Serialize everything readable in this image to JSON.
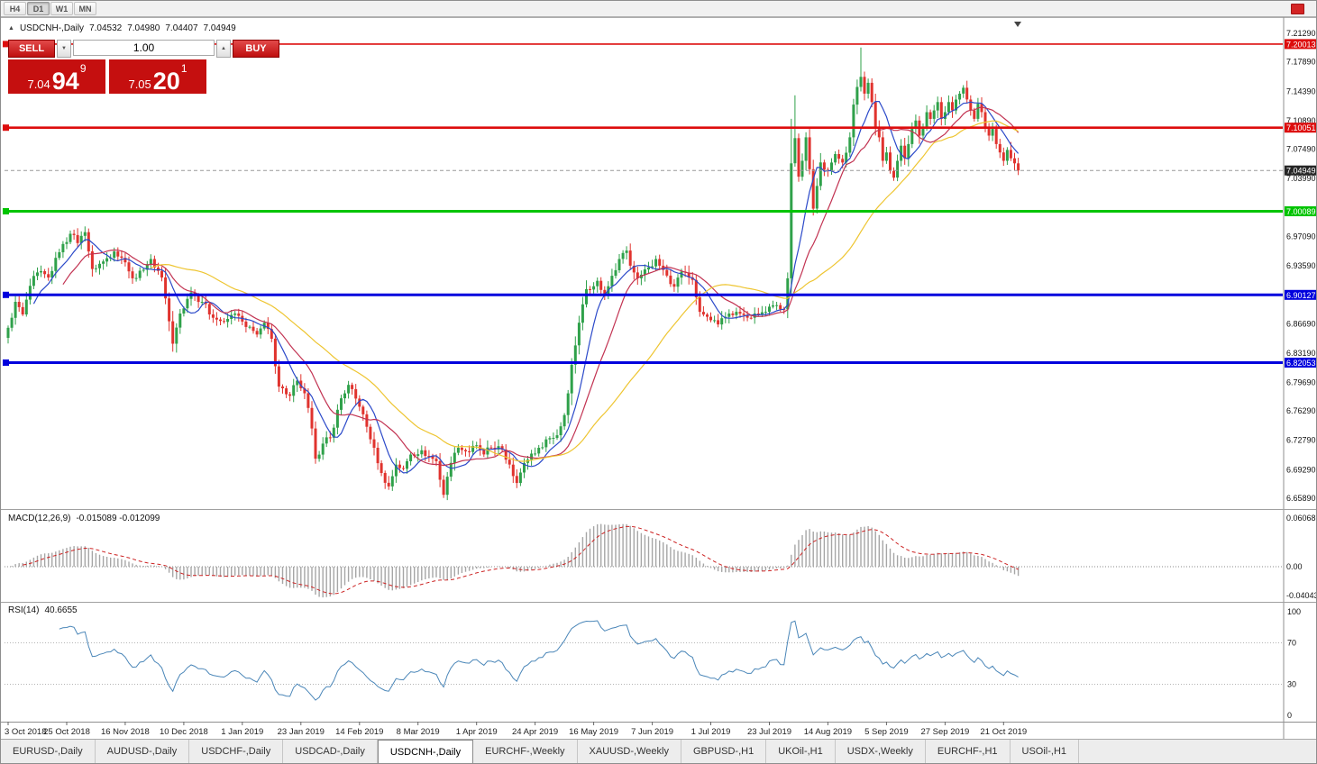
{
  "toolbar": {
    "timeframes": [
      {
        "label": "H4",
        "active": false
      },
      {
        "label": "D1",
        "active": true
      },
      {
        "label": "W1",
        "active": false
      },
      {
        "label": "MN",
        "active": false
      }
    ]
  },
  "icons": {
    "spinner_down": "▼",
    "spinner_up": "▲",
    "info_marker": "▲"
  },
  "chart_header": {
    "symbol": "USDCNH-,Daily",
    "open": "7.04532",
    "high": "7.04980",
    "low": "7.04407",
    "close": "7.04949"
  },
  "trade_panel": {
    "sell_label": "SELL",
    "buy_label": "BUY",
    "volume": "1.00",
    "sell_price_whole": "7.04",
    "sell_price_big": "94",
    "sell_price_sup": "9",
    "buy_price_whole": "7.05",
    "buy_price_big": "20",
    "buy_price_sup": "1"
  },
  "chart_data": {
    "type": "candlestick",
    "title": "USDCNH Daily with MACD and RSI",
    "symbol": "USDCNH",
    "timeframe": "Daily",
    "price_min": 6.6589,
    "price_max": 7.2129,
    "bars_total": 277,
    "current_price": 7.04949,
    "current_price_label": "7.04949",
    "current_price_tag_color": "#262626",
    "candle_up_color": "#2fa14a",
    "candle_down_color": "#e0332e",
    "x_labels": [
      "3 Oct 2018",
      "25 Oct 2018",
      "16 Nov 2018",
      "10 Dec 2018",
      "1 Jan 2019",
      "23 Jan 2019",
      "14 Feb 2019",
      "8 Mar 2019",
      "1 Apr 2019",
      "24 Apr 2019",
      "16 May 2019",
      "7 Jun 2019",
      "1 Jul 2019",
      "23 Jul 2019",
      "14 Aug 2019",
      "5 Sep 2019",
      "27 Sep 2019",
      "21 Oct 2019"
    ],
    "y_axis_labels": [
      "7.21290",
      "7.17890",
      "7.14390",
      "7.10890",
      "7.07490",
      "7.03990",
      "6.97090",
      "6.93590",
      "6.86690",
      "6.83190",
      "6.79690",
      "6.76290",
      "6.72790",
      "6.69290",
      "6.65890"
    ],
    "horizontal_lines": [
      {
        "price": 7.20013,
        "label": "7.20013",
        "color": "#dd0d0d",
        "width": 1.6
      },
      {
        "price": 7.10051,
        "label": "7.10051",
        "color": "#dd0d0d",
        "width": 2.6
      },
      {
        "price": 7.00089,
        "label": "7.00089",
        "color": "#00c400",
        "width": 3
      },
      {
        "price": 6.90127,
        "label": "6.90127",
        "color": "#0000dd",
        "width": 3
      },
      {
        "price": 6.82053,
        "label": "6.82053",
        "color": "#0000dd",
        "width": 3
      }
    ],
    "moving_averages": [
      {
        "name": "fast",
        "period": 8,
        "color": "#2b49c9"
      },
      {
        "name": "mid",
        "period": 16,
        "color": "#c23352"
      },
      {
        "name": "slow",
        "period": 40,
        "color": "#eec531"
      }
    ],
    "close_anchors": [
      [
        0,
        6.862
      ],
      [
        2,
        6.893
      ],
      [
        4,
        6.878
      ],
      [
        6,
        6.912
      ],
      [
        8,
        6.928
      ],
      [
        11,
        6.922
      ],
      [
        14,
        6.952
      ],
      [
        17,
        6.974
      ],
      [
        19,
        6.963
      ],
      [
        21,
        6.976
      ],
      [
        23,
        6.932
      ],
      [
        26,
        6.941
      ],
      [
        29,
        6.953
      ],
      [
        32,
        6.94
      ],
      [
        34,
        6.921
      ],
      [
        36,
        6.93
      ],
      [
        39,
        6.944
      ],
      [
        42,
        6.922
      ],
      [
        43,
        6.897
      ],
      [
        45,
        6.843
      ],
      [
        47,
        6.879
      ],
      [
        50,
        6.904
      ],
      [
        53,
        6.893
      ],
      [
        56,
        6.874
      ],
      [
        59,
        6.869
      ],
      [
        62,
        6.879
      ],
      [
        65,
        6.863
      ],
      [
        68,
        6.854
      ],
      [
        70,
        6.868
      ],
      [
        72,
        6.849
      ],
      [
        74,
        6.792
      ],
      [
        77,
        6.781
      ],
      [
        79,
        6.799
      ],
      [
        81,
        6.784
      ],
      [
        83,
        6.742
      ],
      [
        84,
        6.706
      ],
      [
        86,
        6.724
      ],
      [
        88,
        6.731
      ],
      [
        91,
        6.778
      ],
      [
        93,
        6.794
      ],
      [
        96,
        6.768
      ],
      [
        98,
        6.744
      ],
      [
        100,
        6.719
      ],
      [
        102,
        6.689
      ],
      [
        104,
        6.673
      ],
      [
        106,
        6.699
      ],
      [
        108,
        6.694
      ],
      [
        110,
        6.711
      ],
      [
        113,
        6.716
      ],
      [
        115,
        6.709
      ],
      [
        117,
        6.703
      ],
      [
        119,
        6.663
      ],
      [
        121,
        6.701
      ],
      [
        123,
        6.719
      ],
      [
        126,
        6.714
      ],
      [
        128,
        6.722
      ],
      [
        130,
        6.711
      ],
      [
        132,
        6.719
      ],
      [
        134,
        6.721
      ],
      [
        137,
        6.699
      ],
      [
        139,
        6.677
      ],
      [
        141,
        6.701
      ],
      [
        143,
        6.712
      ],
      [
        145,
        6.719
      ],
      [
        147,
        6.729
      ],
      [
        150,
        6.734
      ],
      [
        152,
        6.758
      ],
      [
        154,
        6.818
      ],
      [
        156,
        6.868
      ],
      [
        158,
        6.908
      ],
      [
        161,
        6.918
      ],
      [
        163,
        6.901
      ],
      [
        165,
        6.924
      ],
      [
        167,
        6.944
      ],
      [
        169,
        6.954
      ],
      [
        170,
        6.936
      ],
      [
        172,
        6.921
      ],
      [
        175,
        6.934
      ],
      [
        177,
        6.944
      ],
      [
        179,
        6.931
      ],
      [
        182,
        6.911
      ],
      [
        184,
        6.929
      ],
      [
        187,
        6.919
      ],
      [
        189,
        6.881
      ],
      [
        192,
        6.871
      ],
      [
        194,
        6.866
      ],
      [
        197,
        6.879
      ],
      [
        199,
        6.881
      ],
      [
        202,
        6.874
      ],
      [
        204,
        6.879
      ],
      [
        207,
        6.881
      ],
      [
        210,
        6.889
      ],
      [
        212,
        6.884
      ],
      [
        213,
        6.921
      ],
      [
        214,
        7.058
      ],
      [
        215,
        7.088
      ],
      [
        216,
        7.042
      ],
      [
        217,
        7.061
      ],
      [
        218,
        7.089
      ],
      [
        219,
        7.051
      ],
      [
        220,
        7.004
      ],
      [
        221,
        7.031
      ],
      [
        222,
        7.059
      ],
      [
        224,
        7.049
      ],
      [
        226,
        7.069
      ],
      [
        228,
        7.059
      ],
      [
        230,
        7.089
      ],
      [
        231,
        7.128
      ],
      [
        232,
        7.149
      ],
      [
        233,
        7.161
      ],
      [
        234,
        7.141
      ],
      [
        235,
        7.154
      ],
      [
        236,
        7.131
      ],
      [
        237,
        7.101
      ],
      [
        238,
        7.089
      ],
      [
        239,
        7.061
      ],
      [
        240,
        7.071
      ],
      [
        241,
        7.049
      ],
      [
        242,
        7.041
      ],
      [
        243,
        7.061
      ],
      [
        244,
        7.079
      ],
      [
        245,
        7.064
      ],
      [
        246,
        7.081
      ],
      [
        247,
        7.099
      ],
      [
        248,
        7.109
      ],
      [
        249,
        7.091
      ],
      [
        250,
        7.101
      ],
      [
        251,
        7.119
      ],
      [
        252,
        7.111
      ],
      [
        253,
        7.121
      ],
      [
        254,
        7.131
      ],
      [
        255,
        7.111
      ],
      [
        256,
        7.119
      ],
      [
        257,
        7.131
      ],
      [
        258,
        7.121
      ],
      [
        259,
        7.134
      ],
      [
        260,
        7.141
      ],
      [
        261,
        7.148
      ],
      [
        262,
        7.134
      ],
      [
        263,
        7.121
      ],
      [
        264,
        7.111
      ],
      [
        265,
        7.129
      ],
      [
        266,
        7.119
      ],
      [
        267,
        7.101
      ],
      [
        268,
        7.091
      ],
      [
        269,
        7.099
      ],
      [
        270,
        7.081
      ],
      [
        271,
        7.071
      ],
      [
        272,
        7.061
      ],
      [
        273,
        7.074
      ],
      [
        274,
        7.064
      ],
      [
        275,
        7.058
      ],
      [
        276,
        7.04949
      ]
    ],
    "high_overrides": {
      "214": 7.111,
      "215": 7.139,
      "233": 7.196
    },
    "low_overrides": {
      "104": 6.6689,
      "119": 6.6592,
      "214": 6.901
    },
    "macd": {
      "label": "MACD(12,26,9)",
      "value_text": "-0.015089 -0.012099",
      "fast": 12,
      "slow": 26,
      "signal": 9,
      "axis_labels": [
        "0.060687",
        "0.00",
        "-0.040432"
      ],
      "axis_max": 0.060687,
      "axis_min": -0.040432,
      "histogram_color": "#a6a6a6",
      "signal_color": "#cc2222"
    },
    "rsi": {
      "label": "RSI(14)",
      "value_text": "40.6655",
      "period": 14,
      "axis_labels": [
        "100",
        "70",
        "30",
        "0"
      ],
      "upper_level": 70,
      "lower_level": 30,
      "line_color": "#4a86b8"
    }
  },
  "tabs": [
    {
      "label": "EURUSD-,Daily",
      "active": false
    },
    {
      "label": "AUDUSD-,Daily",
      "active": false
    },
    {
      "label": "USDCHF-,Daily",
      "active": false
    },
    {
      "label": "USDCAD-,Daily",
      "active": false
    },
    {
      "label": "USDCNH-,Daily",
      "active": true
    },
    {
      "label": "EURCHF-,Weekly",
      "active": false
    },
    {
      "label": "XAUUSD-,Weekly",
      "active": false
    },
    {
      "label": "GBPUSD-,H1",
      "active": false
    },
    {
      "label": "UKOil-,H1",
      "active": false
    },
    {
      "label": "USDX-,Weekly",
      "active": false
    },
    {
      "label": "EURCHF-,H1",
      "active": false
    },
    {
      "label": "USOil-,H1",
      "active": false
    }
  ]
}
